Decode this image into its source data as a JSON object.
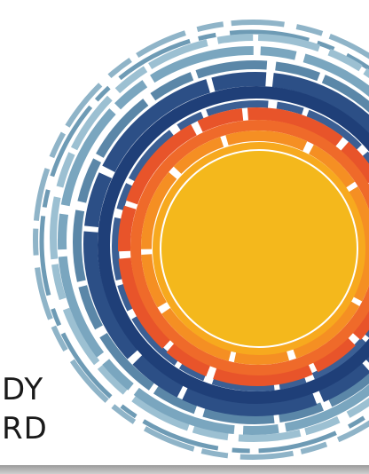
{
  "texts": [
    "DY",
    "RD"
  ]
}
